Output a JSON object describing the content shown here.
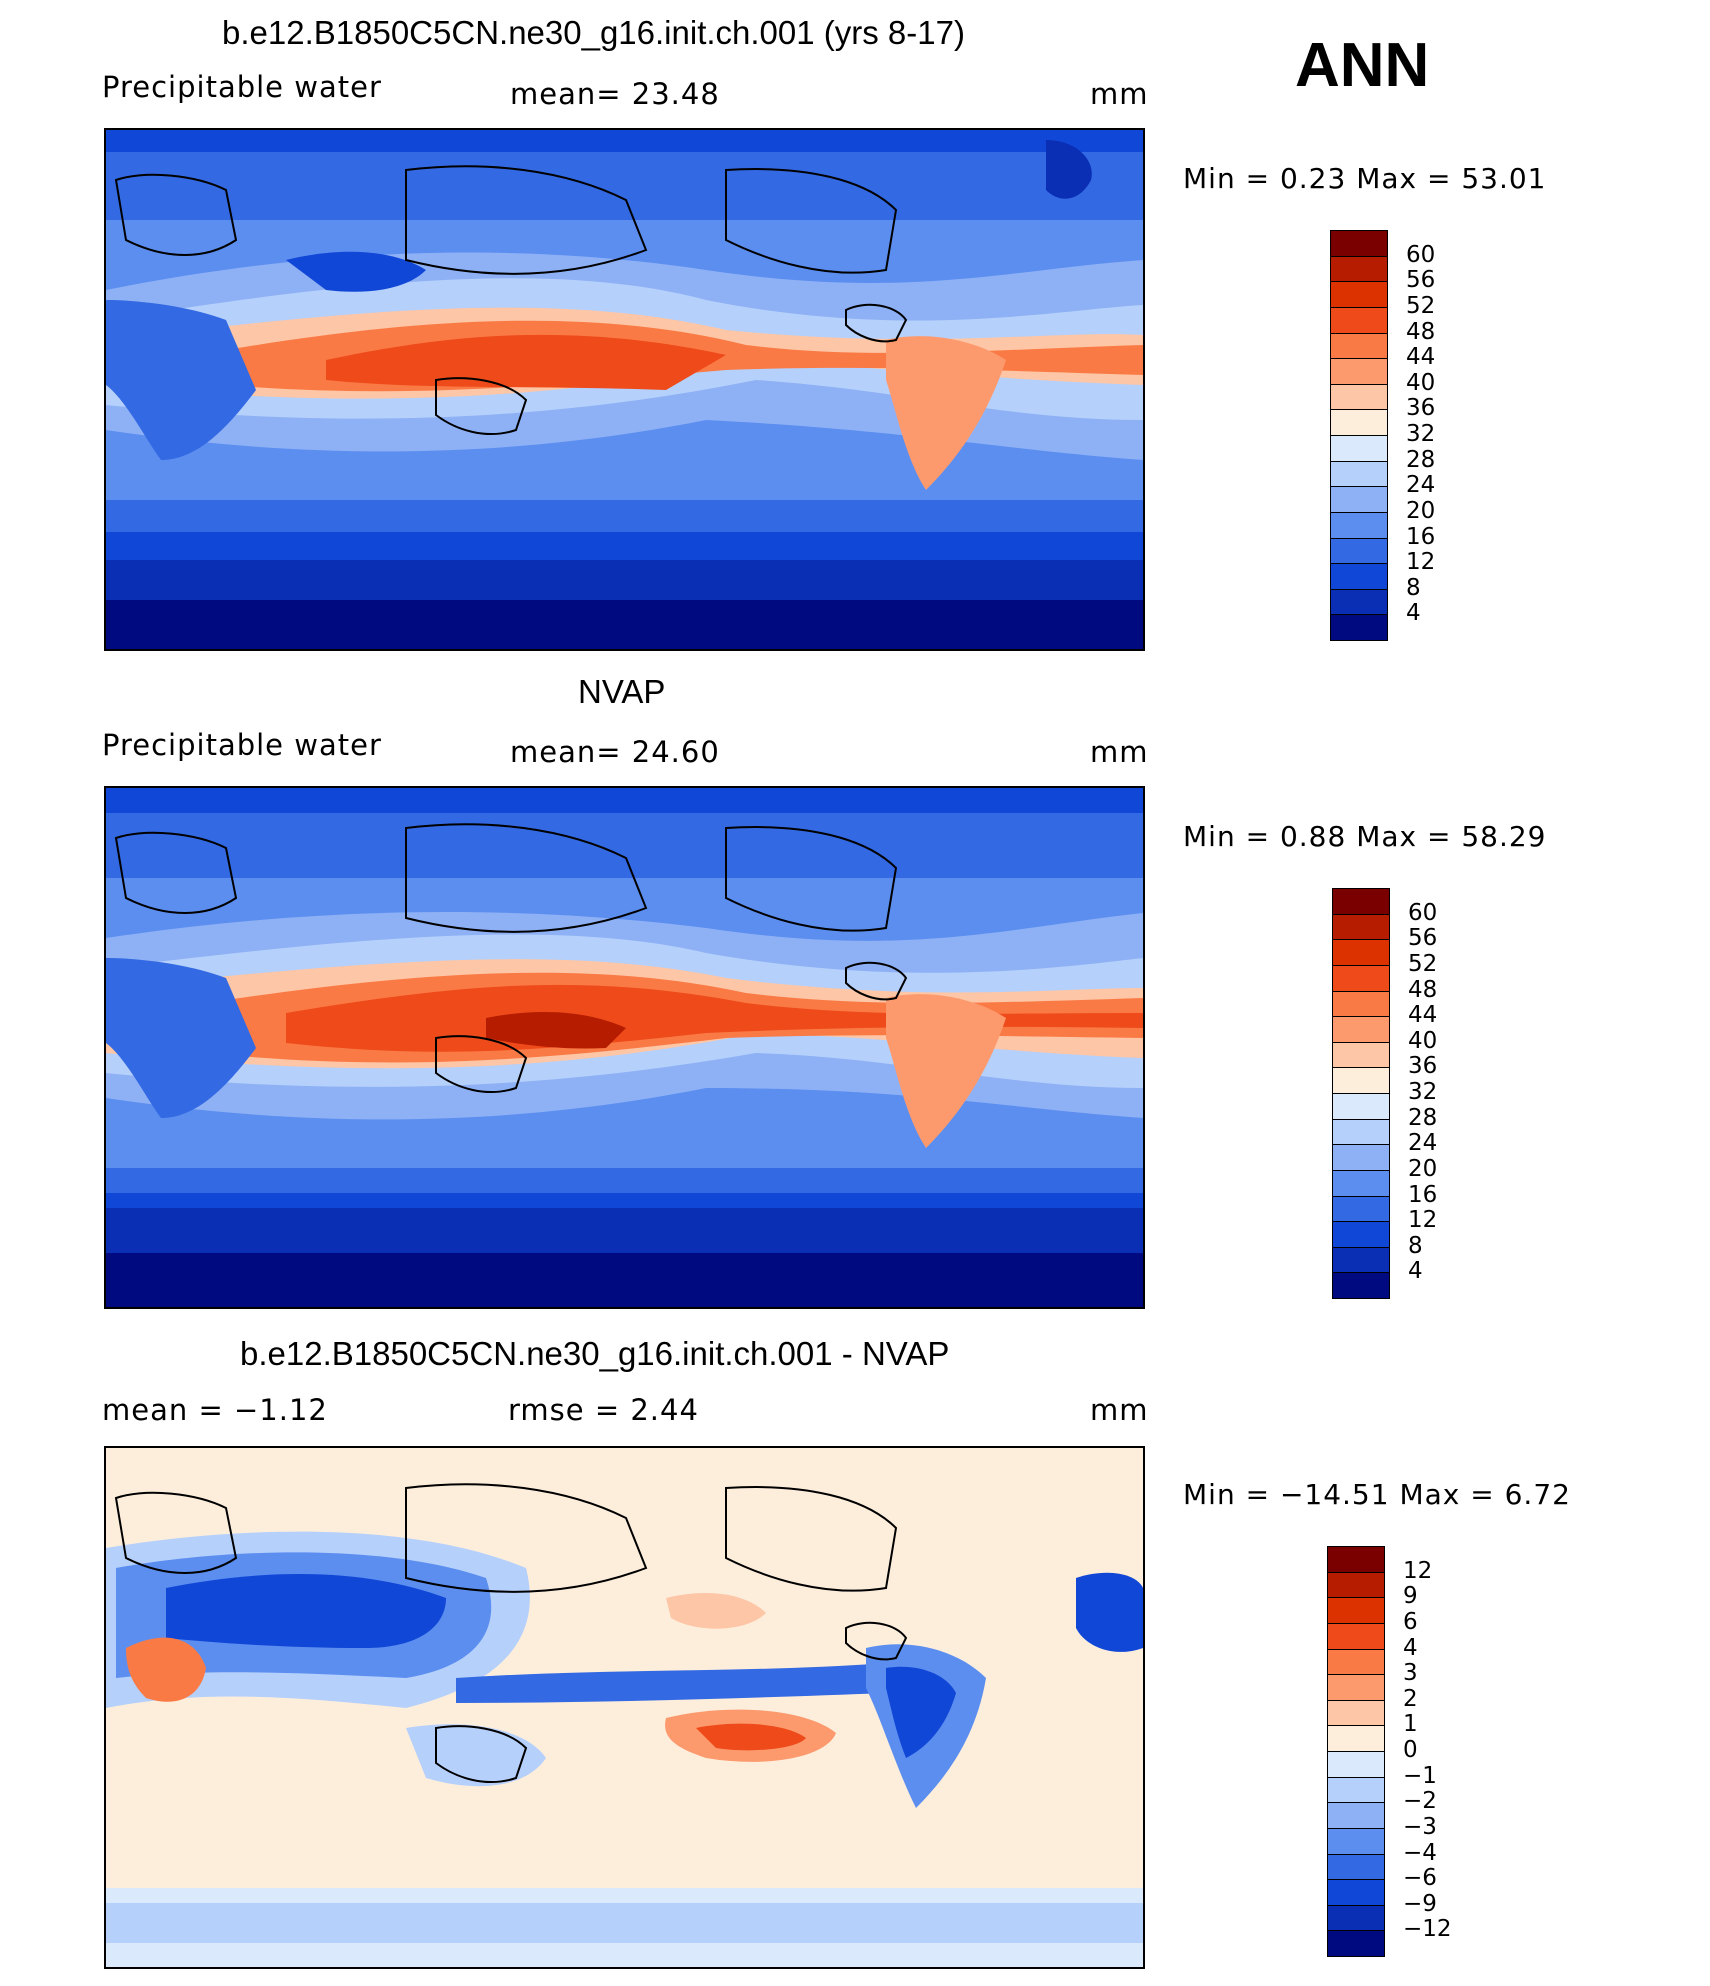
{
  "season": "ANN",
  "panels": [
    {
      "title": "b.e12.B1850C5CN.ne30_g16.init.ch.001 (yrs 8-17)",
      "left_label": "Precipitable  water",
      "center_label": "mean=   23.48",
      "units": "mm",
      "minmax": "Min  =     0.23  Max  =    53.01",
      "colorbar": {
        "labels": [
          "60",
          "56",
          "52",
          "48",
          "44",
          "40",
          "36",
          "32",
          "28",
          "24",
          "20",
          "16",
          "12",
          "8",
          "4"
        ],
        "colors": [
          "#7a0000",
          "#b51c00",
          "#dc3200",
          "#ee4a1a",
          "#fa7a45",
          "#fc9a6e",
          "#fdc6a6",
          "#fdeedc",
          "#dae9fb",
          "#b5d0fb",
          "#8eb1f5",
          "#5c8ef0",
          "#3369e3",
          "#1147d6",
          "#0a2fb5",
          "#000a80"
        ]
      }
    },
    {
      "title": "NVAP",
      "left_label": "Precipitable  water",
      "center_label": "mean=   24.60",
      "units": "mm",
      "minmax": "Min  =     0.88  Max  =    58.29",
      "colorbar": {
        "labels": [
          "60",
          "56",
          "52",
          "48",
          "44",
          "40",
          "36",
          "32",
          "28",
          "24",
          "20",
          "16",
          "12",
          "8",
          "4"
        ],
        "colors": [
          "#7a0000",
          "#b51c00",
          "#dc3200",
          "#ee4a1a",
          "#fa7a45",
          "#fc9a6e",
          "#fdc6a6",
          "#fdeedc",
          "#dae9fb",
          "#b5d0fb",
          "#8eb1f5",
          "#5c8ef0",
          "#3369e3",
          "#1147d6",
          "#0a2fb5",
          "#000a80"
        ]
      }
    },
    {
      "title": "b.e12.B1850C5CN.ne30_g16.init.ch.001 - NVAP",
      "left_label": "mean  =    −1.12",
      "center_label": "rmse  =     2.44",
      "units": "mm",
      "minmax": "Min  =  −14.51  Max  =     6.72",
      "colorbar": {
        "labels": [
          "12",
          "9",
          "6",
          "4",
          "3",
          "2",
          "1",
          "0",
          "−1",
          "−2",
          "−3",
          "−4",
          "−6",
          "−9",
          "−12"
        ],
        "colors": [
          "#7a0000",
          "#b51c00",
          "#dc3200",
          "#ee4a1a",
          "#fa7a45",
          "#fc9a6e",
          "#fdc6a6",
          "#fdeedc",
          "#dae9fb",
          "#b5d0fb",
          "#8eb1f5",
          "#5c8ef0",
          "#3369e3",
          "#1147d6",
          "#0a2fb5",
          "#000a80"
        ]
      }
    }
  ]
}
